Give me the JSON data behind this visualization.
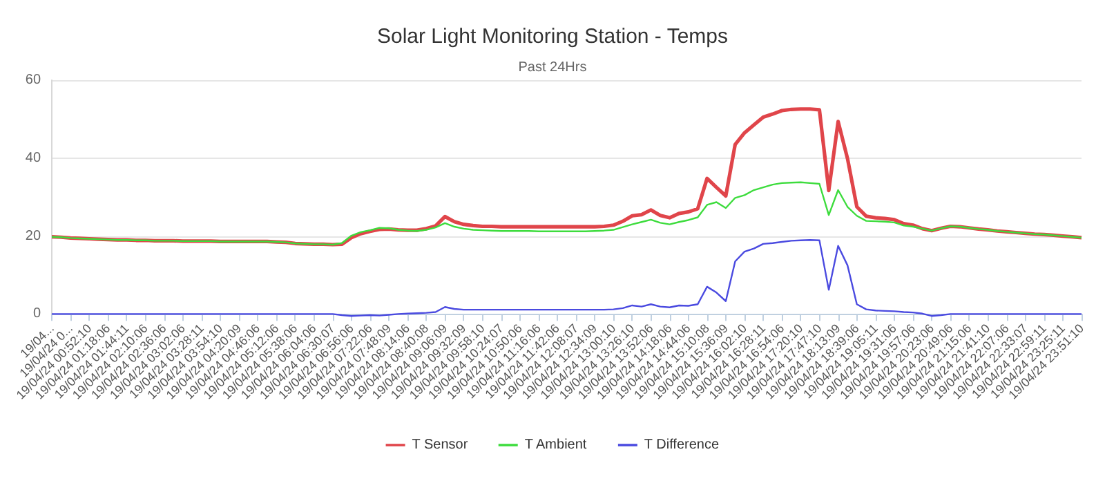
{
  "chart_data": {
    "type": "line",
    "title": "Solar Light Monitoring Station - Temps",
    "subtitle": "Past 24Hrs",
    "categories": [
      "19/04...",
      null,
      "19/04/24 0...",
      null,
      "19/04/24 00:52:10",
      null,
      "19/04/24 01:18:06",
      null,
      "19/04/24 01:44:11",
      null,
      "19/04/24 02:10:06",
      null,
      "19/04/24 02:36:06",
      null,
      "19/04/24 03:02:06",
      null,
      "19/04/24 03:28:11",
      null,
      "19/04/24 03:54:10",
      null,
      "19/04/24 04:20:09",
      null,
      "19/04/24 04:46:06",
      null,
      "19/04/24 05:12:06",
      null,
      "19/04/24 05:38:06",
      null,
      "19/04/24 06:04:06",
      null,
      "19/04/24 06:30:07",
      null,
      "19/04/24 06:56:06",
      null,
      "19/04/24 07:22:06",
      null,
      "19/04/24 07:48:09",
      null,
      "19/04/24 08:14:06",
      null,
      "19/04/24 08:40:08",
      null,
      "19/04/24 09:06:09",
      null,
      "19/04/24 09:32:09",
      null,
      "19/04/24 09:58:10",
      null,
      "19/04/24 10:24:07",
      null,
      "19/04/24 10:50:06",
      null,
      "19/04/24 11:16:06",
      null,
      "19/04/24 11:42:06",
      null,
      "19/04/24 12:08:07",
      null,
      "19/04/24 12:34:09",
      null,
      "19/04/24 13:00:10",
      null,
      "19/04/24 13:26:10",
      null,
      "19/04/24 13:52:06",
      null,
      "19/04/24 14:18:06",
      null,
      "19/04/24 14:44:06",
      null,
      "19/04/24 15:10:08",
      null,
      "19/04/24 15:36:09",
      null,
      "19/04/24 16:02:10",
      null,
      "19/04/24 16:28:11",
      null,
      "19/04/24 16:54:06",
      null,
      "19/04/24 17:20:10",
      null,
      "19/04/24 17:47:10",
      null,
      "19/04/24 18:13:09",
      null,
      "19/04/24 18:39:06",
      null,
      "19/04/24 19:05:11",
      null,
      "19/04/24 19:31:06",
      null,
      "19/04/24 19:57:06",
      null,
      "19/04/24 20:23:06",
      null,
      "19/04/24 20:49:06",
      null,
      "19/04/24 21:15:06",
      null,
      "19/04/24 21:41:10",
      null,
      "19/04/24 22:07:06",
      null,
      "19/04/24 22:33:07",
      null,
      "19/04/24 22:59:11",
      null,
      "19/04/24 23:25:11",
      null,
      "19/04/24 23:51:10"
    ],
    "series": [
      {
        "name": "T Sensor",
        "color": "#e0454a",
        "values": [
          19.8,
          19.7,
          19.5,
          19.4,
          19.3,
          19.2,
          19.1,
          19.0,
          19.0,
          18.9,
          18.9,
          18.8,
          18.8,
          18.8,
          18.7,
          18.7,
          18.7,
          18.7,
          18.6,
          18.6,
          18.6,
          18.6,
          18.6,
          18.6,
          18.5,
          18.4,
          18.1,
          18.0,
          17.9,
          17.9,
          17.8,
          17.9,
          19.6,
          20.6,
          21.2,
          21.7,
          21.8,
          21.6,
          21.5,
          21.5,
          21.9,
          22.6,
          25.0,
          23.7,
          23.0,
          22.7,
          22.5,
          22.5,
          22.4,
          22.4,
          22.4,
          22.4,
          22.4,
          22.4,
          22.4,
          22.4,
          22.4,
          22.4,
          22.4,
          22.5,
          22.8,
          23.8,
          25.2,
          25.5,
          26.7,
          25.3,
          24.7,
          25.8,
          26.2,
          27.0,
          34.8,
          32.5,
          30.3,
          43.5,
          46.5,
          48.5,
          50.5,
          51.3,
          52.2,
          52.5,
          52.6,
          52.6,
          52.4,
          31.7,
          49.4,
          39.9,
          27.5,
          25.1,
          24.7,
          24.5,
          24.2,
          23.2,
          22.8,
          21.9,
          21.4,
          22.0,
          22.5,
          22.4,
          22.1,
          21.8,
          21.6,
          21.3,
          21.1,
          20.9,
          20.7,
          20.5,
          20.4,
          20.2,
          20.0,
          19.8,
          19.6
        ]
      },
      {
        "name": "T Ambient",
        "color": "#3ddc3d",
        "values": [
          19.8,
          19.7,
          19.5,
          19.4,
          19.3,
          19.2,
          19.1,
          19.0,
          19.0,
          18.9,
          18.9,
          18.8,
          18.8,
          18.8,
          18.7,
          18.7,
          18.7,
          18.7,
          18.6,
          18.6,
          18.6,
          18.6,
          18.6,
          18.6,
          18.5,
          18.4,
          18.1,
          18.0,
          17.9,
          17.9,
          17.8,
          18.2,
          20.1,
          21.0,
          21.5,
          22.1,
          22.0,
          21.6,
          21.4,
          21.3,
          21.6,
          22.2,
          23.3,
          22.4,
          21.9,
          21.6,
          21.5,
          21.4,
          21.3,
          21.3,
          21.3,
          21.3,
          21.2,
          21.2,
          21.2,
          21.2,
          21.2,
          21.2,
          21.3,
          21.4,
          21.6,
          22.3,
          23.0,
          23.6,
          24.2,
          23.4,
          23.0,
          23.6,
          24.1,
          24.8,
          28.0,
          28.7,
          27.2,
          29.8,
          30.5,
          31.8,
          32.5,
          33.2,
          33.6,
          33.7,
          33.8,
          33.6,
          33.4,
          25.4,
          31.8,
          27.5,
          25.2,
          23.9,
          23.8,
          23.7,
          23.5,
          22.7,
          22.4,
          21.9,
          21.4,
          22.0,
          22.5,
          22.4,
          22.1,
          21.8,
          21.6,
          21.3,
          21.1,
          20.9,
          20.7,
          20.5,
          20.4,
          20.2,
          20.0,
          19.8,
          19.6
        ]
      },
      {
        "name": "T Difference",
        "color": "#4a4ae0",
        "values": [
          0,
          0,
          0,
          0,
          0,
          0,
          0,
          0,
          0,
          0,
          0,
          0,
          0,
          0,
          0,
          0,
          0,
          0,
          0,
          0,
          0,
          0,
          0,
          0,
          0,
          0,
          0,
          0,
          0,
          0,
          0,
          -0.3,
          -0.5,
          -0.4,
          -0.3,
          -0.4,
          -0.2,
          0,
          0.1,
          0.2,
          0.3,
          0.5,
          1.8,
          1.3,
          1.1,
          1.1,
          1.1,
          1.1,
          1.1,
          1.1,
          1.1,
          1.1,
          1.1,
          1.1,
          1.1,
          1.1,
          1.1,
          1.1,
          1.1,
          1.1,
          1.2,
          1.5,
          2.2,
          1.9,
          2.5,
          1.9,
          1.7,
          2.2,
          2.1,
          2.5,
          7.0,
          5.5,
          3.3,
          13.5,
          16.0,
          16.8,
          18.0,
          18.2,
          18.5,
          18.8,
          18.9,
          19.0,
          18.9,
          6.2,
          17.5,
          12.5,
          2.5,
          1.2,
          0.9,
          0.8,
          0.7,
          0.5,
          0.4,
          0.1,
          -0.5,
          -0.3,
          0,
          0,
          0,
          0,
          0,
          0,
          0,
          0,
          0,
          0,
          0,
          0,
          0,
          0,
          0
        ]
      }
    ],
    "ylim": [
      -1,
      60
    ],
    "yticks": [
      0,
      20,
      40,
      60
    ],
    "grid": "y",
    "legend": "bottom",
    "marker": "none",
    "line_style": "solid"
  }
}
